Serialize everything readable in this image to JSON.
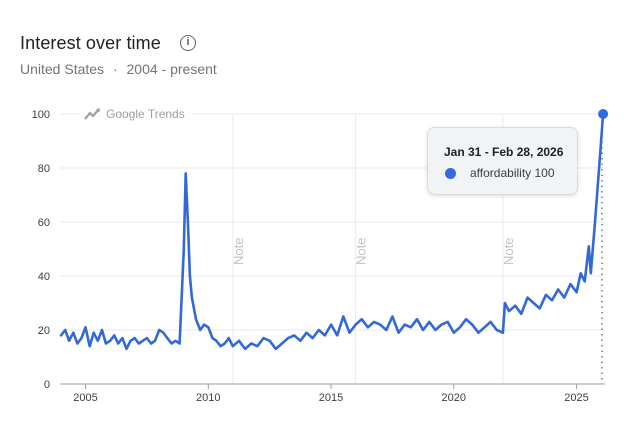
{
  "header": {
    "title": "Interest over time",
    "info_icon": "info-icon",
    "region": "United States",
    "separator": "·",
    "period": "2004 - present"
  },
  "watermark": {
    "icon": "trending-up-icon",
    "label": "Google Trends"
  },
  "notes": [
    {
      "label": "Note",
      "x_year": 2011.0
    },
    {
      "label": "Note",
      "x_year": 2016.0
    },
    {
      "label": "Note",
      "x_year": 2022.0
    }
  ],
  "tooltip": {
    "date": "Jan 31 - Feb 28, 2026",
    "series": "affordability",
    "value": "100",
    "text": "affordability 100",
    "dot_color": "#2f6bde"
  },
  "colors": {
    "line": "#3369d6",
    "grid": "#e8eaed",
    "axis": "#9aa0a6"
  },
  "chart_data": {
    "type": "line",
    "title": "Interest over time",
    "subtitle": "United States · 2004 - present",
    "xlabel": "",
    "ylabel": "",
    "ylim": [
      0,
      100
    ],
    "yticks": [
      0,
      20,
      40,
      60,
      80,
      100
    ],
    "xticks": [
      "2005",
      "2010",
      "2015",
      "2020",
      "2025"
    ],
    "grid": true,
    "legend": "none",
    "series": [
      {
        "name": "affordability",
        "x": [
          2004.0,
          2004.17,
          2004.33,
          2004.5,
          2004.67,
          2004.83,
          2005.0,
          2005.17,
          2005.33,
          2005.5,
          2005.67,
          2005.83,
          2006.0,
          2006.17,
          2006.33,
          2006.5,
          2006.67,
          2006.83,
          2007.0,
          2007.17,
          2007.33,
          2007.5,
          2007.67,
          2007.83,
          2008.0,
          2008.17,
          2008.33,
          2008.5,
          2008.67,
          2008.83,
          2009.0,
          2009.08,
          2009.17,
          2009.25,
          2009.33,
          2009.5,
          2009.67,
          2009.83,
          2010.0,
          2010.17,
          2010.33,
          2010.5,
          2010.67,
          2010.83,
          2011.0,
          2011.25,
          2011.5,
          2011.75,
          2012.0,
          2012.25,
          2012.5,
          2012.75,
          2013.0,
          2013.25,
          2013.5,
          2013.75,
          2014.0,
          2014.25,
          2014.5,
          2014.75,
          2015.0,
          2015.25,
          2015.5,
          2015.75,
          2016.0,
          2016.25,
          2016.5,
          2016.75,
          2017.0,
          2017.25,
          2017.5,
          2017.75,
          2018.0,
          2018.25,
          2018.5,
          2018.75,
          2019.0,
          2019.25,
          2019.5,
          2019.75,
          2020.0,
          2020.25,
          2020.5,
          2020.75,
          2021.0,
          2021.25,
          2021.5,
          2021.75,
          2022.0,
          2022.08,
          2022.25,
          2022.5,
          2022.75,
          2023.0,
          2023.25,
          2023.5,
          2023.75,
          2024.0,
          2024.25,
          2024.5,
          2024.75,
          2025.0,
          2025.17,
          2025.33,
          2025.5,
          2025.58,
          2025.75,
          2025.92,
          2026.08
        ],
        "values": [
          18,
          20,
          16,
          19,
          15,
          17,
          21,
          14,
          19,
          16,
          20,
          15,
          16,
          18,
          15,
          17,
          13,
          16,
          17,
          15,
          16,
          17,
          15,
          16,
          20,
          19,
          17,
          15,
          16,
          15,
          50,
          78,
          60,
          40,
          32,
          24,
          20,
          22,
          21,
          17,
          16,
          14,
          15,
          17,
          14,
          16,
          13,
          15,
          14,
          17,
          16,
          13,
          15,
          17,
          18,
          16,
          19,
          17,
          20,
          18,
          22,
          18,
          25,
          19,
          22,
          24,
          21,
          23,
          22,
          20,
          25,
          19,
          22,
          21,
          24,
          20,
          23,
          20,
          22,
          23,
          19,
          21,
          24,
          22,
          19,
          21,
          23,
          20,
          19,
          30,
          27,
          29,
          26,
          32,
          30,
          28,
          33,
          31,
          35,
          32,
          37,
          34,
          41,
          38,
          51,
          41,
          60,
          80,
          100
        ]
      }
    ],
    "annotations": [
      {
        "type": "vline",
        "x": 2011.0,
        "label": "Note"
      },
      {
        "type": "vline",
        "x": 2016.0,
        "label": "Note"
      },
      {
        "type": "vline",
        "x": 2022.0,
        "label": "Note"
      },
      {
        "type": "tooltip",
        "x": "Jan 31 - Feb 28, 2026",
        "text": "affordability 100"
      }
    ]
  }
}
